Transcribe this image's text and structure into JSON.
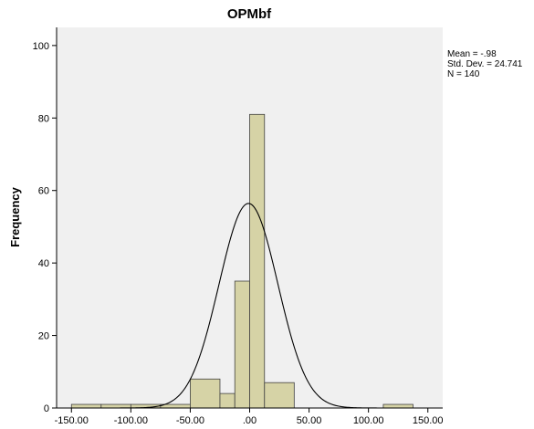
{
  "chart_data": {
    "type": "histogram",
    "title": "OPMbf",
    "ylabel": "Frequency",
    "xlabel": "",
    "xlim": [
      -162.5,
      162.5
    ],
    "ylim": [
      0,
      105
    ],
    "x_ticks": [
      -150,
      -100,
      -50,
      0,
      50,
      100,
      150
    ],
    "x_tick_labels": [
      "-150.00",
      "-100.00",
      "-50.00",
      ".00",
      "50.00",
      "100.00",
      "150.00"
    ],
    "y_ticks": [
      0,
      20,
      40,
      60,
      80,
      100
    ],
    "y_tick_labels": [
      "0",
      "20",
      "40",
      "60",
      "80",
      "100"
    ],
    "bin_width": 25,
    "bins": [
      {
        "start": -150,
        "end": -125,
        "count": 1
      },
      {
        "start": -125,
        "end": -100,
        "count": 1
      },
      {
        "start": -100,
        "end": -75,
        "count": 1
      },
      {
        "start": -75,
        "end": -50,
        "count": 1
      },
      {
        "start": -50,
        "end": -25,
        "count": 8
      },
      {
        "start": -25,
        "end": -12.5,
        "count": 4
      },
      {
        "start": -12.5,
        "end": 0,
        "count": 35
      },
      {
        "start": 0,
        "end": 12.5,
        "count": 81
      },
      {
        "start": 12.5,
        "end": 37.5,
        "count": 7
      },
      {
        "start": 112.5,
        "end": 137.5,
        "count": 1
      }
    ],
    "normal_curve": {
      "mean": -0.98,
      "sd": 24.741,
      "n": 140
    },
    "grid": false,
    "colors": {
      "plot_background": "#f0f0f0",
      "bar_fill": "#d6d3a6",
      "bar_stroke": "#404040",
      "curve": "#000000"
    }
  },
  "stats": {
    "mean_text": "Mean = -.98",
    "sd_text": "Std. Dev. = 24.741",
    "n_text": "N = 140"
  }
}
